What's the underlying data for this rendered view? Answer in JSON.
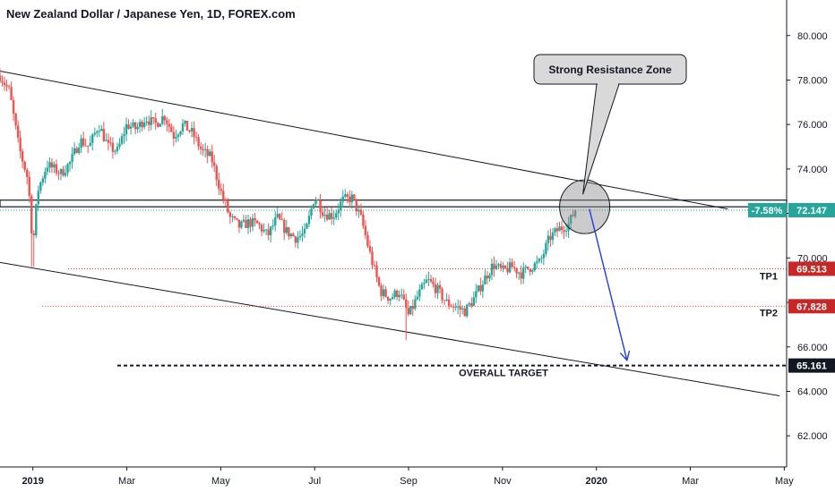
{
  "chart_data": {
    "type": "candlestick",
    "title": "New Zealand Dollar / Japanese Yen, 1D, FOREX.com",
    "x_ticks": [
      {
        "label": "2019",
        "t": 0,
        "bold": true
      },
      {
        "label": "Mar",
        "t": 2
      },
      {
        "label": "May",
        "t": 4
      },
      {
        "label": "Jul",
        "t": 6
      },
      {
        "label": "Sep",
        "t": 8
      },
      {
        "label": "Nov",
        "t": 10
      },
      {
        "label": "2020",
        "t": 12,
        "bold": true
      },
      {
        "label": "Mar",
        "t": 14
      },
      {
        "label": "May",
        "t": 16
      }
    ],
    "x_range_months": [
      -0.7,
      16.05
    ],
    "y_ticks": [
      "62.000",
      "64.000",
      "66.000",
      "68.000",
      "70.000",
      "72.000",
      "74.000",
      "76.000",
      "78.000",
      "80.000"
    ],
    "y_range": [
      60.6,
      81.6
    ],
    "close_path": [
      [
        -0.7,
        78.2
      ],
      [
        -0.5,
        77.5
      ],
      [
        -0.3,
        75.0
      ],
      [
        -0.1,
        73.5
      ],
      [
        0.0,
        70.5
      ],
      [
        0.1,
        73.0
      ],
      [
        0.3,
        74.2
      ],
      [
        0.6,
        73.8
      ],
      [
        0.8,
        74.3
      ],
      [
        1.0,
        75.3
      ],
      [
        1.2,
        75.0
      ],
      [
        1.4,
        76.0
      ],
      [
        1.6,
        75.0
      ],
      [
        1.8,
        74.8
      ],
      [
        2.0,
        76.0
      ],
      [
        2.2,
        75.8
      ],
      [
        2.4,
        76.3
      ],
      [
        2.6,
        76.0
      ],
      [
        2.8,
        76.4
      ],
      [
        3.0,
        75.5
      ],
      [
        3.2,
        76.0
      ],
      [
        3.4,
        75.6
      ],
      [
        3.6,
        74.8
      ],
      [
        3.8,
        74.5
      ],
      [
        4.0,
        73.0
      ],
      [
        4.2,
        71.8
      ],
      [
        4.4,
        71.4
      ],
      [
        4.6,
        71.6
      ],
      [
        4.8,
        71.5
      ],
      [
        5.0,
        71.0
      ],
      [
        5.2,
        71.8
      ],
      [
        5.4,
        71.2
      ],
      [
        5.6,
        70.9
      ],
      [
        5.8,
        71.1
      ],
      [
        6.0,
        72.8
      ],
      [
        6.2,
        72.0
      ],
      [
        6.4,
        71.9
      ],
      [
        6.6,
        72.6
      ],
      [
        6.8,
        72.7
      ],
      [
        7.0,
        71.7
      ],
      [
        7.2,
        70.0
      ],
      [
        7.4,
        68.5
      ],
      [
        7.6,
        68.2
      ],
      [
        7.8,
        68.5
      ],
      [
        8.0,
        67.4
      ],
      [
        8.2,
        68.3
      ],
      [
        8.4,
        69.0
      ],
      [
        8.6,
        68.6
      ],
      [
        8.8,
        68.0
      ],
      [
        9.0,
        67.8
      ],
      [
        9.2,
        67.6
      ],
      [
        9.4,
        68.2
      ],
      [
        9.6,
        69.0
      ],
      [
        9.8,
        69.7
      ],
      [
        10.0,
        69.4
      ],
      [
        10.2,
        69.6
      ],
      [
        10.4,
        69.3
      ],
      [
        10.6,
        69.6
      ],
      [
        10.8,
        69.8
      ],
      [
        11.0,
        70.9
      ],
      [
        11.2,
        71.3
      ],
      [
        11.4,
        71.5
      ],
      [
        11.55,
        72.15
      ]
    ],
    "lows": [
      {
        "t": 0.0,
        "low": 69.6
      },
      {
        "t": 7.95,
        "low": 66.3
      }
    ],
    "channel_upper": [
      [
        -0.7,
        78.4
      ],
      [
        14.8,
        72.2
      ]
    ],
    "channel_lower": [
      [
        -0.7,
        69.8
      ],
      [
        15.9,
        63.8
      ]
    ],
    "resistance_band": [
      72.3,
      72.6
    ],
    "current_price_line": 72.147,
    "price_tag": {
      "value": "72.147",
      "change": "-7.58%"
    },
    "targets": [
      {
        "label": "TP1",
        "value": "69.513",
        "y": 69.513,
        "t_start": 0.75
      },
      {
        "label": "TP2",
        "value": "67.828",
        "y": 67.828,
        "t_start": 0.2
      },
      {
        "label": "OVERALL TARGET",
        "value": "65.161",
        "y": 65.161,
        "t_start": 1.8
      }
    ],
    "resistance_circle": {
      "t": 11.75,
      "y": 72.3
    },
    "callout_label": "Strong Resistance Zone",
    "projection_arrow": {
      "from": [
        11.85,
        72.2
      ],
      "to": [
        12.65,
        65.4
      ]
    }
  }
}
